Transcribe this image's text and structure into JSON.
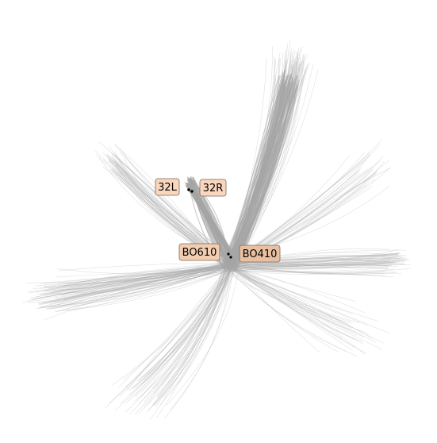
{
  "map": {
    "colors": {
      "track": "#a9a9a9",
      "label_fill_light": "#f9d6bd",
      "label_fill_dark": "#e8bfa0",
      "label_edge": "#7a6a5a",
      "marker": "#000000",
      "background": "#ffffff"
    },
    "labels": {
      "runway_32l": "32L",
      "runway_32r": "32R",
      "fix_bo610": "BO610",
      "fix_bo410": "BO410"
    }
  }
}
